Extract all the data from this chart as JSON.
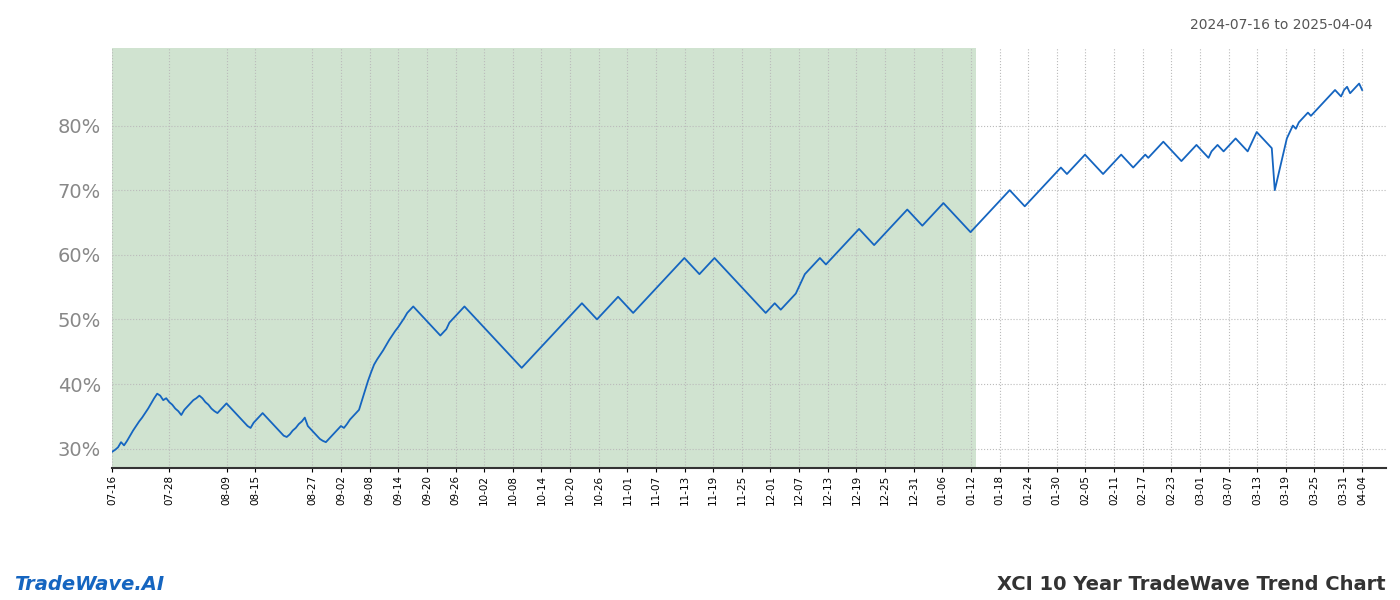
{
  "title_date_range": "2024-07-16 to 2025-04-04",
  "footer_left": "TradeWave.AI",
  "footer_right": "XCI 10 Year TradeWave Trend Chart",
  "bg_color": "#ffffff",
  "line_color": "#1565c0",
  "shaded_region_color": "#c8dfc8",
  "shaded_region_alpha": 0.85,
  "ylim": [
    27,
    92
  ],
  "yticks": [
    30,
    40,
    50,
    60,
    70,
    80
  ],
  "start_date": "2024-07-16",
  "end_date": "2025-04-04",
  "shaded_start": "2024-07-16",
  "shaded_end": "2025-01-13",
  "grid_color": "#bbbbbb",
  "line_width": 1.3,
  "y_values": [
    29.5,
    29.8,
    30.2,
    31.0,
    30.5,
    31.2,
    32.0,
    32.8,
    33.5,
    34.2,
    34.8,
    35.5,
    36.2,
    37.0,
    37.8,
    38.5,
    38.2,
    37.5,
    37.8,
    37.2,
    36.8,
    36.2,
    35.8,
    35.2,
    36.0,
    36.5,
    37.0,
    37.5,
    37.8,
    38.2,
    37.8,
    37.2,
    36.8,
    36.2,
    35.8,
    35.5,
    36.0,
    36.5,
    37.0,
    36.5,
    36.0,
    35.5,
    35.0,
    34.5,
    34.0,
    33.5,
    33.2,
    34.0,
    34.5,
    35.0,
    35.5,
    35.0,
    34.5,
    34.0,
    33.5,
    33.0,
    32.5,
    32.0,
    31.8,
    32.2,
    32.8,
    33.2,
    33.8,
    34.2,
    34.8,
    33.5,
    33.0,
    32.5,
    32.0,
    31.5,
    31.2,
    31.0,
    31.5,
    32.0,
    32.5,
    33.0,
    33.5,
    33.2,
    33.8,
    34.5,
    35.0,
    35.5,
    36.0,
    37.5,
    39.0,
    40.5,
    41.8,
    43.0,
    43.8,
    44.5,
    45.2,
    46.0,
    46.8,
    47.5,
    48.2,
    48.8,
    49.5,
    50.2,
    51.0,
    51.5,
    52.0,
    51.5,
    51.0,
    50.5,
    50.0,
    49.5,
    49.0,
    48.5,
    48.0,
    47.5,
    48.0,
    48.5,
    49.5,
    50.0,
    50.5,
    51.0,
    51.5,
    52.0,
    51.5,
    51.0,
    50.5,
    50.0,
    49.5,
    49.0,
    48.5,
    48.0,
    47.5,
    47.0,
    46.5,
    46.0,
    45.5,
    45.0,
    44.5,
    44.0,
    43.5,
    43.0,
    42.5,
    43.0,
    43.5,
    44.0,
    44.5,
    45.0,
    45.5,
    46.0,
    46.5,
    47.0,
    47.5,
    48.0,
    48.5,
    49.0,
    49.5,
    50.0,
    50.5,
    51.0,
    51.5,
    52.0,
    52.5,
    52.0,
    51.5,
    51.0,
    50.5,
    50.0,
    50.5,
    51.0,
    51.5,
    52.0,
    52.5,
    53.0,
    53.5,
    53.0,
    52.5,
    52.0,
    51.5,
    51.0,
    51.5,
    52.0,
    52.5,
    53.0,
    53.5,
    54.0,
    54.5,
    55.0,
    55.5,
    56.0,
    56.5,
    57.0,
    57.5,
    58.0,
    58.5,
    59.0,
    59.5,
    59.0,
    58.5,
    58.0,
    57.5,
    57.0,
    57.5,
    58.0,
    58.5,
    59.0,
    59.5,
    59.0,
    58.5,
    58.0,
    57.5,
    57.0,
    56.5,
    56.0,
    55.5,
    55.0,
    54.5,
    54.0,
    53.5,
    53.0,
    52.5,
    52.0,
    51.5,
    51.0,
    51.5,
    52.0,
    52.5,
    52.0,
    51.5,
    52.0,
    52.5,
    53.0,
    53.5,
    54.0,
    55.0,
    56.0,
    57.0,
    57.5,
    58.0,
    58.5,
    59.0,
    59.5,
    59.0,
    58.5,
    59.0,
    59.5,
    60.0,
    60.5,
    61.0,
    61.5,
    62.0,
    62.5,
    63.0,
    63.5,
    64.0,
    63.5,
    63.0,
    62.5,
    62.0,
    61.5,
    62.0,
    62.5,
    63.0,
    63.5,
    64.0,
    64.5,
    65.0,
    65.5,
    66.0,
    66.5,
    67.0,
    66.5,
    66.0,
    65.5,
    65.0,
    64.5,
    65.0,
    65.5,
    66.0,
    66.5,
    67.0,
    67.5,
    68.0,
    67.5,
    67.0,
    66.5,
    66.0,
    65.5,
    65.0,
    64.5,
    64.0,
    63.5,
    64.0,
    64.5,
    65.0,
    65.5,
    66.0,
    66.5,
    67.0,
    67.5,
    68.0,
    68.5,
    69.0,
    69.5,
    70.0,
    69.5,
    69.0,
    68.5,
    68.0,
    67.5,
    68.0,
    68.5,
    69.0,
    69.5,
    70.0,
    70.5,
    71.0,
    71.5,
    72.0,
    72.5,
    73.0,
    73.5,
    73.0,
    72.5,
    73.0,
    73.5,
    74.0,
    74.5,
    75.0,
    75.5,
    75.0,
    74.5,
    74.0,
    73.5,
    73.0,
    72.5,
    73.0,
    73.5,
    74.0,
    74.5,
    75.0,
    75.5,
    75.0,
    74.5,
    74.0,
    73.5,
    74.0,
    74.5,
    75.0,
    75.5,
    75.0,
    75.5,
    76.0,
    76.5,
    77.0,
    77.5,
    77.0,
    76.5,
    76.0,
    75.5,
    75.0,
    74.5,
    75.0,
    75.5,
    76.0,
    76.5,
    77.0,
    76.5,
    76.0,
    75.5,
    75.0,
    76.0,
    76.5,
    77.0,
    76.5,
    76.0,
    76.5,
    77.0,
    77.5,
    78.0,
    77.5,
    77.0,
    76.5,
    76.0,
    77.0,
    78.0,
    79.0,
    78.5,
    78.0,
    77.5,
    77.0,
    76.5,
    70.0,
    72.0,
    74.0,
    76.0,
    78.0,
    79.0,
    80.0,
    79.5,
    80.5,
    81.0,
    81.5,
    82.0,
    81.5,
    82.0,
    82.5,
    83.0,
    83.5,
    84.0,
    84.5,
    85.0,
    85.5,
    85.0,
    84.5,
    85.5,
    86.0,
    85.0,
    85.5,
    86.0,
    86.5,
    85.5
  ],
  "x_tick_dates": [
    "2024-07-16",
    "2024-07-28",
    "2024-08-09",
    "2024-08-15",
    "2024-08-27",
    "2024-09-02",
    "2024-09-08",
    "2024-09-14",
    "2024-09-20",
    "2024-09-26",
    "2024-10-02",
    "2024-10-08",
    "2024-10-14",
    "2024-10-20",
    "2024-10-26",
    "2024-11-01",
    "2024-11-07",
    "2024-11-13",
    "2024-11-19",
    "2024-11-25",
    "2024-12-01",
    "2024-12-07",
    "2024-12-13",
    "2024-12-19",
    "2024-12-25",
    "2024-12-31",
    "2025-01-06",
    "2025-01-12",
    "2025-01-18",
    "2025-01-24",
    "2025-01-30",
    "2025-02-05",
    "2025-02-11",
    "2025-02-17",
    "2025-02-23",
    "2025-03-01",
    "2025-03-07",
    "2025-03-13",
    "2025-03-19",
    "2025-03-25",
    "2025-03-31",
    "2025-04-04"
  ],
  "x_tick_labels": [
    "07-16",
    "07-28",
    "08-09",
    "08-15",
    "08-27",
    "09-02",
    "09-08",
    "09-14",
    "09-20",
    "09-26",
    "10-02",
    "10-08",
    "10-14",
    "10-20",
    "10-26",
    "11-01",
    "11-07",
    "11-13",
    "11-19",
    "11-25",
    "12-01",
    "12-07",
    "12-13",
    "12-19",
    "12-25",
    "12-31",
    "01-06",
    "01-12",
    "01-18",
    "01-24",
    "01-30",
    "02-05",
    "02-11",
    "02-17",
    "02-23",
    "03-01",
    "03-07",
    "03-13",
    "03-19",
    "03-25",
    "03-31",
    "04-04"
  ]
}
